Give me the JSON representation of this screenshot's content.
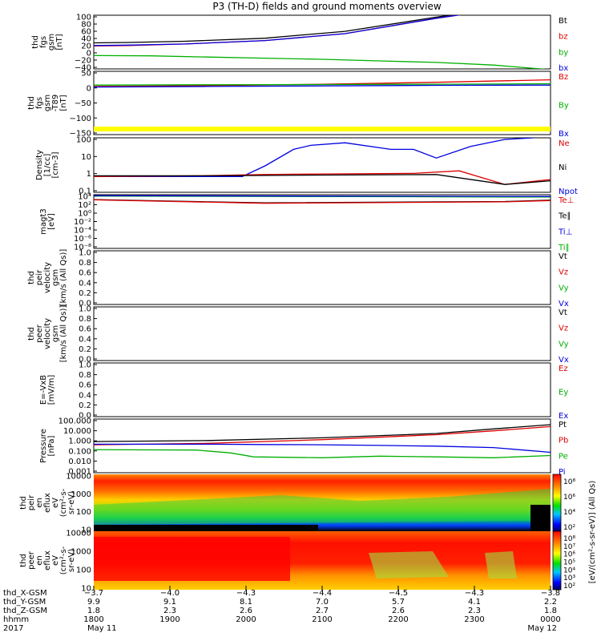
{
  "title": "P3 (TH-D) fields and ground moments overview",
  "chart_data": [
    {
      "type": "line",
      "panel": "fgs-gsm",
      "ylabel": [
        "thd",
        "fgs",
        "gsm",
        "[nT]"
      ],
      "ylim": [
        -40,
        100
      ],
      "yticks": [
        "100",
        "80",
        "60",
        "40",
        "20",
        "0",
        "−20",
        "−40"
      ],
      "legend": [
        {
          "label": "Bt",
          "color": "#000000"
        },
        {
          "label": "bz",
          "color": "#e00000"
        },
        {
          "label": "by",
          "color": "#00b000"
        },
        {
          "label": "bx",
          "color": "#0000e0"
        }
      ],
      "series": [
        {
          "name": "Bt",
          "color": "#000000",
          "x": [
            0,
            0.3,
            0.8,
            1.5,
            2.2,
            3.0,
            3.6
          ],
          "y": [
            28,
            29,
            32,
            40,
            58,
            95,
            120
          ]
        },
        {
          "name": "bz",
          "color": "#e00000",
          "x": [
            0,
            0.3,
            0.8,
            1.5,
            2.2,
            3.0,
            3.6
          ],
          "y": [
            20,
            21,
            25,
            34,
            52,
            92,
            118
          ]
        },
        {
          "name": "bx",
          "color": "#0000e0",
          "x": [
            0,
            0.3,
            0.8,
            1.5,
            2.2,
            3.0,
            3.6
          ],
          "y": [
            21,
            22,
            25,
            34,
            52,
            92,
            118
          ]
        },
        {
          "name": "by",
          "color": "#00b000",
          "x": [
            0,
            0.5,
            1.0,
            1.5,
            2.0,
            2.5,
            3.0,
            3.5,
            4.0
          ],
          "y": [
            -5,
            -6,
            -9,
            -12,
            -15,
            -19,
            -23,
            -30,
            -42
          ]
        }
      ]
    },
    {
      "type": "line",
      "panel": "fgs-gsm-minus-t89",
      "ylabel": [
        "thd",
        "fgs",
        "gsm",
        "-T89",
        "[nT]"
      ],
      "ylim": [
        -175,
        55
      ],
      "yticks": [
        "50",
        "0",
        "−50",
        "−100",
        "−150"
      ],
      "legend": [
        {
          "label": "Bz",
          "color": "#e00000"
        },
        {
          "label": "By",
          "color": "#00b000"
        },
        {
          "label": "Bx",
          "color": "#0000e0"
        }
      ],
      "series": [
        {
          "name": "Bz",
          "color": "#e00000",
          "x": [
            0,
            1,
            2,
            3,
            4
          ],
          "y": [
            0,
            3,
            8,
            15,
            24
          ]
        },
        {
          "name": "By",
          "color": "#00b000",
          "x": [
            0,
            1,
            2,
            3,
            4
          ],
          "y": [
            5,
            6,
            7,
            8,
            10
          ]
        },
        {
          "name": "Bx",
          "color": "#0000e0",
          "x": [
            0,
            1,
            2,
            3,
            4
          ],
          "y": [
            -2,
            0,
            2,
            4,
            5
          ]
        }
      ]
    },
    {
      "type": "line",
      "panel": "density",
      "ylabel": [
        "Density",
        "[1/cc]",
        "[cm-3]"
      ],
      "log_scale": true,
      "ylim": [
        0.1,
        200
      ],
      "yticks": [
        "100",
        "10",
        "1",
        "0.1"
      ],
      "legend": [
        {
          "label": "Ne",
          "color": "#e00000"
        },
        {
          "label": "Ni",
          "color": "#000000"
        },
        {
          "label": "Npot",
          "color": "#0000e0"
        }
      ],
      "series": [
        {
          "name": "Npot",
          "color": "#0000e0",
          "x": [
            0,
            0.9,
            1.3,
            1.5,
            1.75,
            1.9,
            2.2,
            2.6,
            2.8,
            3.0,
            3.3,
            3.6,
            3.85
          ],
          "y": [
            0.9,
            0.9,
            0.9,
            4,
            40,
            70,
            100,
            40,
            40,
            12,
            60,
            160,
            200
          ]
        },
        {
          "name": "Ne",
          "color": "#e00000",
          "x": [
            0,
            0.9,
            1.5,
            2.0,
            2.8,
            3.2,
            3.6,
            4.0
          ],
          "y": [
            0.9,
            1.0,
            1.2,
            1.3,
            1.4,
            2.0,
            0.3,
            0.6
          ]
        },
        {
          "name": "Ni",
          "color": "#000000",
          "x": [
            0,
            1.0,
            2.0,
            3.0,
            3.6,
            4.0
          ],
          "y": [
            1.0,
            1.0,
            1.1,
            1.2,
            0.3,
            0.5
          ]
        }
      ]
    },
    {
      "type": "line",
      "panel": "temperature",
      "ylabel": [
        "magt3",
        "[eV]"
      ],
      "log_scale": true,
      "ylim": [
        1e-08,
        10000
      ],
      "yticks": [
        "10⁴",
        "10²",
        "10⁰",
        "10⁻²",
        "10⁻⁴",
        "10⁻⁶",
        "10⁻⁸"
      ],
      "legend": [
        {
          "label": "Te⊥",
          "color": "#e00000"
        },
        {
          "label": "Te∥",
          "color": "#000000"
        },
        {
          "label": "Ti⊥",
          "color": "#0000e0"
        },
        {
          "label": "Ti∥",
          "color": "#00b000"
        }
      ],
      "series": [
        {
          "name": "Ti∥",
          "color": "#00b000",
          "x": [
            0,
            4
          ],
          "y": [
            5000,
            3000
          ]
        },
        {
          "name": "Ti⊥",
          "color": "#0000e0",
          "x": [
            0,
            4
          ],
          "y": [
            6000,
            4000
          ]
        },
        {
          "name": "Te∥",
          "color": "#000000",
          "x": [
            0,
            1.5,
            3.6,
            4
          ],
          "y": [
            800,
            150,
            300,
            600
          ]
        },
        {
          "name": "Te⊥",
          "color": "#e00000",
          "x": [
            0,
            1.5,
            3.6,
            4
          ],
          "y": [
            700,
            120,
            250,
            500
          ]
        }
      ]
    },
    {
      "type": "line",
      "panel": "peir-velocity",
      "ylabel": [
        "thd",
        "peir",
        "velocity",
        "gsm",
        "[km/s (All Qs)]"
      ],
      "ylim": [
        0,
        1
      ],
      "yticks": [
        "1.0",
        "0.8",
        "0.6",
        "0.4",
        "0.2",
        "0.0"
      ],
      "legend": [
        {
          "label": "Vt",
          "color": "#000000"
        },
        {
          "label": "Vz",
          "color": "#e00000"
        },
        {
          "label": "Vy",
          "color": "#00b000"
        },
        {
          "label": "Vx",
          "color": "#0000e0"
        }
      ],
      "series": []
    },
    {
      "type": "line",
      "panel": "peer-velocity",
      "ylabel": [
        "thd",
        "peer",
        "velocity",
        "gsm",
        "[km/s (All Qs)]"
      ],
      "ylim": [
        0,
        1
      ],
      "yticks": [
        "1.0",
        "0.8",
        "0.6",
        "0.4",
        "0.2",
        "0.0"
      ],
      "legend": [
        {
          "label": "Vt",
          "color": "#000000"
        },
        {
          "label": "Vz",
          "color": "#e00000"
        },
        {
          "label": "Vy",
          "color": "#00b000"
        },
        {
          "label": "Vx",
          "color": "#0000e0"
        }
      ],
      "series": []
    },
    {
      "type": "line",
      "panel": "e-field",
      "ylabel": [
        "E=-VxB",
        "[mV/m]"
      ],
      "ylim": [
        0,
        1
      ],
      "yticks": [
        "1.0",
        "0.8",
        "0.6",
        "0.4",
        "0.2",
        "0.0"
      ],
      "legend": [
        {
          "label": "Ez",
          "color": "#e00000"
        },
        {
          "label": "Ey",
          "color": "#00b000"
        },
        {
          "label": "Ex",
          "color": "#0000e0"
        }
      ],
      "series": []
    },
    {
      "type": "line",
      "panel": "pressure",
      "ylabel": [
        "Pressure",
        "[nPa]"
      ],
      "log_scale": true,
      "ylim": [
        0.001,
        100
      ],
      "yticks": [
        "100.000",
        "10.000",
        "1.000",
        "0.100",
        "0.010",
        "0.001"
      ],
      "legend": [
        {
          "label": "Pt",
          "color": "#000000"
        },
        {
          "label": "Pb",
          "color": "#e00000"
        },
        {
          "label": "Pe",
          "color": "#00b000"
        },
        {
          "label": "Pi",
          "color": "#0000e0"
        }
      ],
      "series": [
        {
          "name": "Pt",
          "color": "#000000",
          "x": [
            0,
            1,
            2,
            3,
            3.5,
            4
          ],
          "y": [
            0.8,
            1.0,
            1.8,
            4.5,
            12,
            30
          ]
        },
        {
          "name": "Pb",
          "color": "#e00000",
          "x": [
            0,
            1,
            2,
            3,
            3.5,
            4
          ],
          "y": [
            0.4,
            0.55,
            1.2,
            3.5,
            8,
            20
          ]
        },
        {
          "name": "Pi",
          "color": "#0000e0",
          "x": [
            0,
            1,
            1.5,
            2,
            2.5,
            3,
            3.5,
            4
          ],
          "y": [
            0.45,
            0.45,
            0.42,
            0.4,
            0.35,
            0.3,
            0.22,
            0.08
          ]
        },
        {
          "name": "Pe",
          "color": "#00b000",
          "x": [
            0,
            0.9,
            1.2,
            1.4,
            2.0,
            2.5,
            3.0,
            3.5,
            4.0
          ],
          "y": [
            0.14,
            0.13,
            0.07,
            0.03,
            0.025,
            0.035,
            0.03,
            0.025,
            0.04
          ]
        }
      ]
    },
    {
      "type": "heatmap",
      "panel": "peir-eflux",
      "ylabel": [
        "thd",
        "peir",
        "en",
        "eflux",
        "eV",
        "(cm²-s-",
        "sr-eV)"
      ],
      "log_scale": true,
      "yticks": [
        "10000",
        "1000",
        "100",
        "10"
      ],
      "colorbar_label": "[eV/(cm²-s-sr-eV)] (All Qs)",
      "colorbar_ticks": [
        "10⁸",
        "10⁶",
        "10⁴",
        "10²"
      ]
    },
    {
      "type": "heatmap",
      "panel": "peer-eflux",
      "ylabel": [
        "thd",
        "peer",
        "en",
        "eflux",
        "eV",
        "(cm²-s-",
        "sr-eV)"
      ],
      "log_scale": true,
      "yticks": [
        "10000",
        "1000",
        "100",
        "10"
      ],
      "colorbar_label": "[eV/(cm²-s-sr-eV)]",
      "colorbar_ticks": [
        "10⁸",
        "10⁷",
        "10⁶",
        "10⁵",
        "10⁴",
        "10³",
        "10²"
      ]
    }
  ],
  "xaxis": {
    "row_labels": [
      "thd_X-GSM",
      "thd_Y-GSM",
      "thd_Z-GSM",
      "hhmm",
      "2017"
    ],
    "ticks": [
      {
        "x": 0,
        "vals": [
          "−3.7",
          "9.9",
          "1.8",
          "1800",
          "May 11"
        ]
      },
      {
        "x": 1,
        "vals": [
          "−4.0",
          "9.1",
          "2.3",
          "1900",
          ""
        ]
      },
      {
        "x": 2,
        "vals": [
          "−4.3",
          "8.1",
          "2.6",
          "2000",
          ""
        ]
      },
      {
        "x": 3,
        "vals": [
          "−4.4",
          "7.0",
          "2.7",
          "2100",
          ""
        ]
      },
      {
        "x": 4,
        "vals": [
          "−4.5",
          "5.7",
          "2.6",
          "2200",
          ""
        ]
      },
      {
        "x": 5,
        "vals": [
          "−4.3",
          "4.1",
          "2.3",
          "2300",
          ""
        ]
      },
      {
        "x": 6,
        "vals": [
          "−3.8",
          "2.2",
          "1.8",
          "0000",
          "May 12"
        ]
      }
    ]
  }
}
